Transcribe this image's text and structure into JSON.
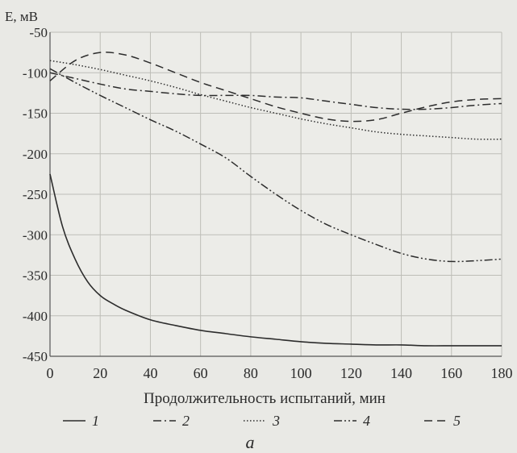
{
  "chart_data": {
    "type": "line",
    "ylabel": "E, мВ",
    "xlabel": "Продолжительность испытаний, мин",
    "xlim": [
      0,
      180
    ],
    "ylim": [
      -450,
      -50
    ],
    "x_ticks": [
      0,
      20,
      40,
      60,
      80,
      100,
      120,
      140,
      160,
      180
    ],
    "y_ticks": [
      -50,
      -100,
      -150,
      -200,
      -250,
      -300,
      -350,
      -400,
      -450
    ],
    "grid": true,
    "legend_position": "bottom",
    "series": [
      {
        "name": "1",
        "style": "solid",
        "x": [
          0,
          5,
          10,
          15,
          20,
          25,
          30,
          40,
          50,
          60,
          70,
          80,
          90,
          100,
          110,
          120,
          130,
          140,
          150,
          160,
          170,
          180
        ],
        "y": [
          -225,
          -290,
          -330,
          -358,
          -375,
          -385,
          -393,
          -405,
          -412,
          -418,
          -422,
          -426,
          -429,
          -432,
          -434,
          -435,
          -436,
          -436,
          -437,
          -437,
          -437,
          -437
        ]
      },
      {
        "name": "2",
        "style": "dash-dot",
        "x": [
          0,
          10,
          20,
          30,
          40,
          50,
          60,
          70,
          80,
          90,
          100,
          110,
          120,
          130,
          140,
          150,
          160,
          170,
          180
        ],
        "y": [
          -100,
          -107,
          -114,
          -120,
          -123,
          -126,
          -128,
          -128,
          -128,
          -130,
          -131,
          -135,
          -139,
          -143,
          -145,
          -145,
          -143,
          -140,
          -138
        ]
      },
      {
        "name": "3",
        "style": "dotted",
        "x": [
          0,
          10,
          20,
          30,
          40,
          50,
          60,
          70,
          80,
          90,
          100,
          110,
          120,
          130,
          140,
          150,
          160,
          170,
          180
        ],
        "y": [
          -85,
          -90,
          -96,
          -103,
          -110,
          -118,
          -127,
          -135,
          -143,
          -150,
          -157,
          -163,
          -168,
          -173,
          -176,
          -178,
          -180,
          -182,
          -182
        ]
      },
      {
        "name": "4",
        "style": "dash-dot-dot",
        "x": [
          0,
          10,
          20,
          30,
          40,
          50,
          60,
          70,
          80,
          90,
          100,
          110,
          120,
          130,
          140,
          150,
          160,
          170,
          180
        ],
        "y": [
          -95,
          -112,
          -128,
          -143,
          -158,
          -172,
          -188,
          -205,
          -228,
          -250,
          -270,
          -287,
          -300,
          -312,
          -323,
          -330,
          -333,
          -332,
          -330
        ]
      },
      {
        "name": "5",
        "style": "dashed",
        "x": [
          0,
          10,
          20,
          30,
          40,
          50,
          60,
          70,
          80,
          90,
          100,
          110,
          120,
          130,
          140,
          150,
          160,
          170,
          180
        ],
        "y": [
          -110,
          -85,
          -75,
          -78,
          -88,
          -100,
          -112,
          -122,
          -132,
          -142,
          -150,
          -157,
          -160,
          -158,
          -150,
          -142,
          -136,
          -133,
          -132
        ]
      }
    ],
    "caption": "а"
  },
  "colors": {
    "background": "#e9e9e5",
    "plot_bg": "#ececE8",
    "grid": "#bdbdb7",
    "axes": "#555555",
    "line": "#2c2c2c",
    "text": "#2a2a2a"
  }
}
